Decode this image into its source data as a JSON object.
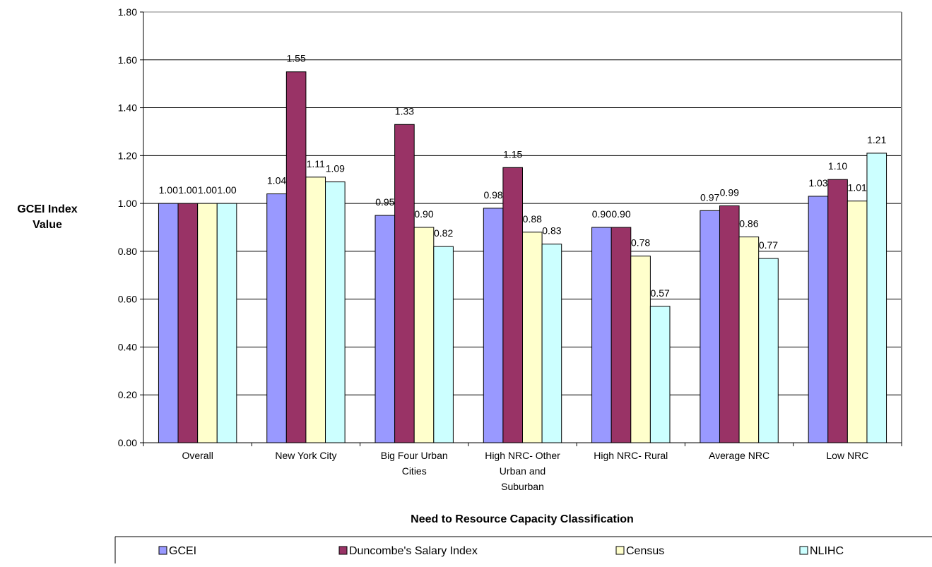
{
  "chart_data": {
    "type": "bar",
    "title": "",
    "xlabel": "Need to Resource Capacity Classification",
    "ylabel": "GCEI Index Value",
    "ylim": [
      0,
      1.8
    ],
    "ytick_step": 0.2,
    "ytick_labels": [
      "0.00",
      "0.20",
      "0.40",
      "0.60",
      "0.80",
      "1.00",
      "1.20",
      "1.40",
      "1.60",
      "1.80"
    ],
    "grid": true,
    "legend_position": "bottom",
    "categories": [
      "Overall",
      "New York City",
      "Big Four Urban Cities",
      "High NRC- Other Urban and Suburban",
      "High NRC- Rural",
      "Average NRC",
      "Low NRC"
    ],
    "category_lines": [
      [
        "Overall"
      ],
      [
        "New York City"
      ],
      [
        "Big Four Urban",
        "Cities"
      ],
      [
        "High NRC- Other",
        "Urban and",
        "Suburban"
      ],
      [
        "High NRC- Rural"
      ],
      [
        "Average NRC"
      ],
      [
        "Low NRC"
      ]
    ],
    "series": [
      {
        "name": "GCEI",
        "color": "#9999ff",
        "values": [
          1.0,
          1.04,
          0.95,
          0.98,
          0.9,
          0.97,
          1.03
        ],
        "labels": [
          "1.00",
          "1.04",
          "0.95",
          "0.98",
          "0.90",
          "0.97",
          "1.03"
        ]
      },
      {
        "name": "Duncombe's Salary Index",
        "color": "#993366",
        "values": [
          1.0,
          1.55,
          1.33,
          1.15,
          0.9,
          0.99,
          1.1
        ],
        "labels": [
          "1.00",
          "1.55",
          "1.33",
          "1.15",
          "0.90",
          "0.99",
          "1.10"
        ]
      },
      {
        "name": "Census",
        "color": "#ffffcc",
        "values": [
          1.0,
          1.11,
          0.9,
          0.88,
          0.78,
          0.86,
          1.01
        ],
        "labels": [
          "1.00",
          "1.11",
          "0.90",
          "0.88",
          "0.78",
          "0.86",
          "1.01"
        ]
      },
      {
        "name": "NLIHC",
        "color": "#ccffff",
        "values": [
          1.0,
          1.09,
          0.82,
          0.83,
          0.57,
          0.77,
          1.21
        ],
        "labels": [
          "1.00",
          "1.09",
          "0.82",
          "0.83",
          "0.57",
          "0.77",
          "1.21"
        ]
      }
    ]
  }
}
